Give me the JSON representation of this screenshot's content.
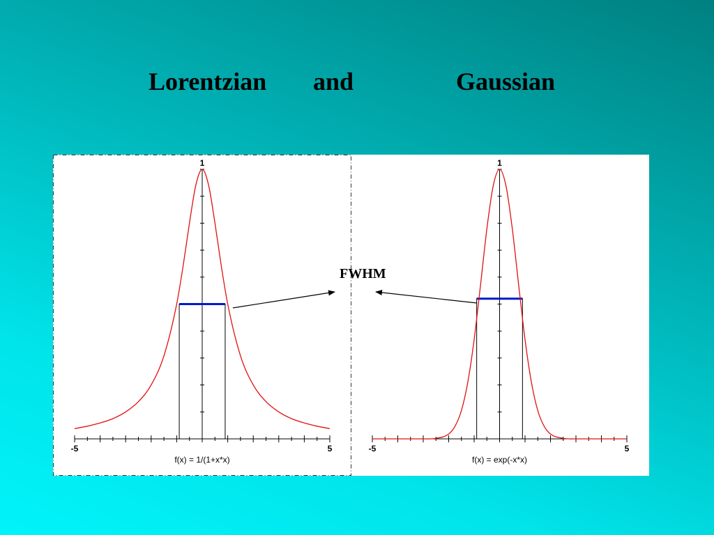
{
  "slide": {
    "title_parts": [
      "Lorentzian",
      "and",
      "Gaussian"
    ]
  },
  "annotation": {
    "label": "FWHM"
  },
  "colors": {
    "curve": "#e01010",
    "fwhm_bar": "#0018c8",
    "panel": "#ffffff",
    "axes": "#000000"
  },
  "chart_data": [
    {
      "type": "line",
      "name": "lorentzian",
      "function_label": "f(x) = 1/(1+x*x)",
      "x_tick_labels": [
        "-5",
        "5"
      ],
      "y_tick_labels": [
        "1"
      ],
      "xlim": [
        -5,
        5
      ],
      "ylim": [
        0,
        1
      ],
      "x": [
        -5,
        -4.5,
        -4,
        -3.5,
        -3,
        -2.5,
        -2,
        -1.5,
        -1,
        -0.75,
        -0.5,
        -0.25,
        0,
        0.25,
        0.5,
        0.75,
        1,
        1.5,
        2,
        2.5,
        3,
        3.5,
        4,
        4.5,
        5
      ],
      "y": [
        0.038,
        0.047,
        0.059,
        0.075,
        0.1,
        0.138,
        0.2,
        0.308,
        0.5,
        0.64,
        0.8,
        0.941,
        1,
        0.941,
        0.8,
        0.64,
        0.5,
        0.308,
        0.2,
        0.138,
        0.1,
        0.075,
        0.059,
        0.047,
        0.038
      ],
      "fwhm": {
        "x_start": -0.9,
        "x_end": 0.9,
        "y": 0.5
      }
    },
    {
      "type": "line",
      "name": "gaussian",
      "function_label": "f(x) = exp(-x*x)",
      "x_tick_labels": [
        "-5",
        "5"
      ],
      "y_tick_labels": [
        "1"
      ],
      "xlim": [
        -5,
        5
      ],
      "ylim": [
        0,
        1
      ],
      "x": [
        -5,
        -4,
        -3,
        -2.5,
        -2,
        -1.75,
        -1.5,
        -1.25,
        -1,
        -0.75,
        -0.5,
        -0.25,
        0,
        0.25,
        0.5,
        0.75,
        1,
        1.25,
        1.5,
        1.75,
        2,
        2.5,
        3,
        4,
        5
      ],
      "y": [
        0,
        0,
        0,
        0.002,
        0.018,
        0.047,
        0.105,
        0.21,
        0.368,
        0.57,
        0.779,
        0.939,
        1,
        0.939,
        0.779,
        0.57,
        0.368,
        0.21,
        0.105,
        0.047,
        0.018,
        0.002,
        0,
        0,
        0
      ],
      "fwhm": {
        "x_start": -0.9,
        "x_end": 0.9,
        "y": 0.52
      }
    }
  ]
}
